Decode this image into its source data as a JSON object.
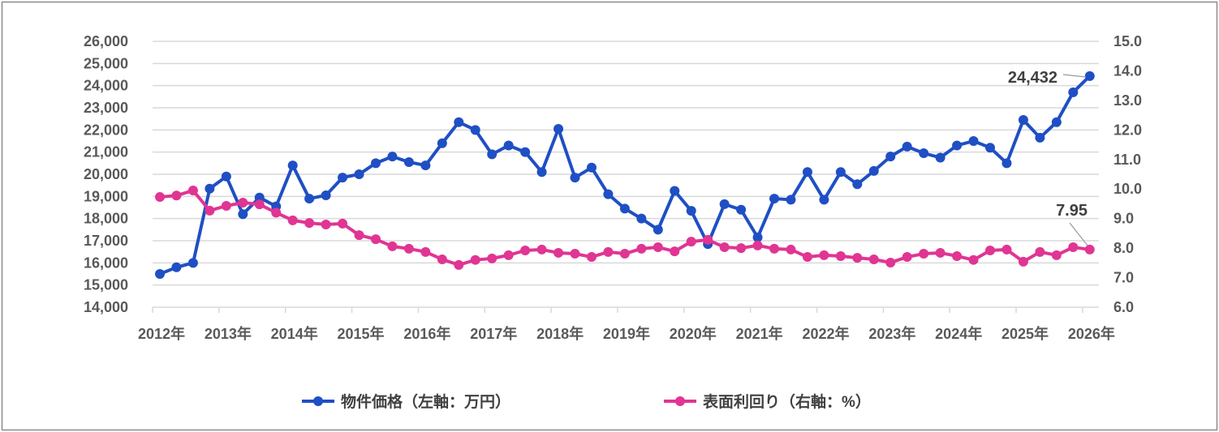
{
  "chart_data": {
    "type": "line",
    "title": "",
    "x_tick_labels": [
      "2012年",
      "2013年",
      "2014年",
      "2015年",
      "2016年",
      "2017年",
      "2018年",
      "2019年",
      "2020年",
      "2021年",
      "2022年",
      "2023年",
      "2024年",
      "2025年",
      "2026年"
    ],
    "x_frequency": "quarterly",
    "y_left": {
      "min": 14000,
      "max": 26000,
      "step": 1000,
      "tick_labels": [
        "14,000",
        "15,000",
        "16,000",
        "17,000",
        "18,000",
        "19,000",
        "20,000",
        "21,000",
        "22,000",
        "23,000",
        "24,000",
        "25,000",
        "26,000"
      ]
    },
    "y_right": {
      "min": 6.0,
      "max": 15.0,
      "step": 1.0,
      "tick_labels": [
        "6.0",
        "7.0",
        "8.0",
        "9.0",
        "10.0",
        "11.0",
        "12.0",
        "13.0",
        "14.0",
        "15.0"
      ]
    },
    "grid": true,
    "legend_position": "bottom",
    "series": [
      {
        "name": "物件価格（左軸：万円）",
        "axis": "left",
        "color": "#1f4fc4",
        "values": [
          15500,
          15800,
          16000,
          19350,
          19900,
          18200,
          18950,
          18550,
          20400,
          18900,
          19050,
          19850,
          20000,
          20500,
          20800,
          20550,
          20400,
          21400,
          22350,
          22000,
          20900,
          21300,
          21000,
          20100,
          22050,
          19850,
          20300,
          19100,
          18450,
          18000,
          17500,
          19250,
          18350,
          16850,
          18650,
          18400,
          17150,
          18900,
          18850,
          20100,
          18850,
          20100,
          19550,
          20150,
          20800,
          21250,
          20950,
          20750,
          21300,
          21500,
          21200,
          20500,
          22450,
          21650,
          22350,
          23700,
          24432
        ],
        "last_label": "24,432"
      },
      {
        "name": "表面利回り（右軸：%）",
        "axis": "right",
        "color": "#e03593",
        "values": [
          9.73,
          9.78,
          9.95,
          9.27,
          9.43,
          9.54,
          9.48,
          9.2,
          8.94,
          8.85,
          8.8,
          8.83,
          8.44,
          8.3,
          8.06,
          7.98,
          7.87,
          7.62,
          7.43,
          7.6,
          7.65,
          7.76,
          7.92,
          7.95,
          7.84,
          7.81,
          7.7,
          7.87,
          7.81,
          7.98,
          8.03,
          7.89,
          8.22,
          8.28,
          8.03,
          8.0,
          8.09,
          7.98,
          7.95,
          7.7,
          7.76,
          7.73,
          7.67,
          7.62,
          7.51,
          7.7,
          7.81,
          7.84,
          7.73,
          7.6,
          7.92,
          7.95,
          7.54,
          7.87,
          7.76,
          8.03,
          7.95
        ],
        "last_label": "7.95"
      }
    ]
  }
}
